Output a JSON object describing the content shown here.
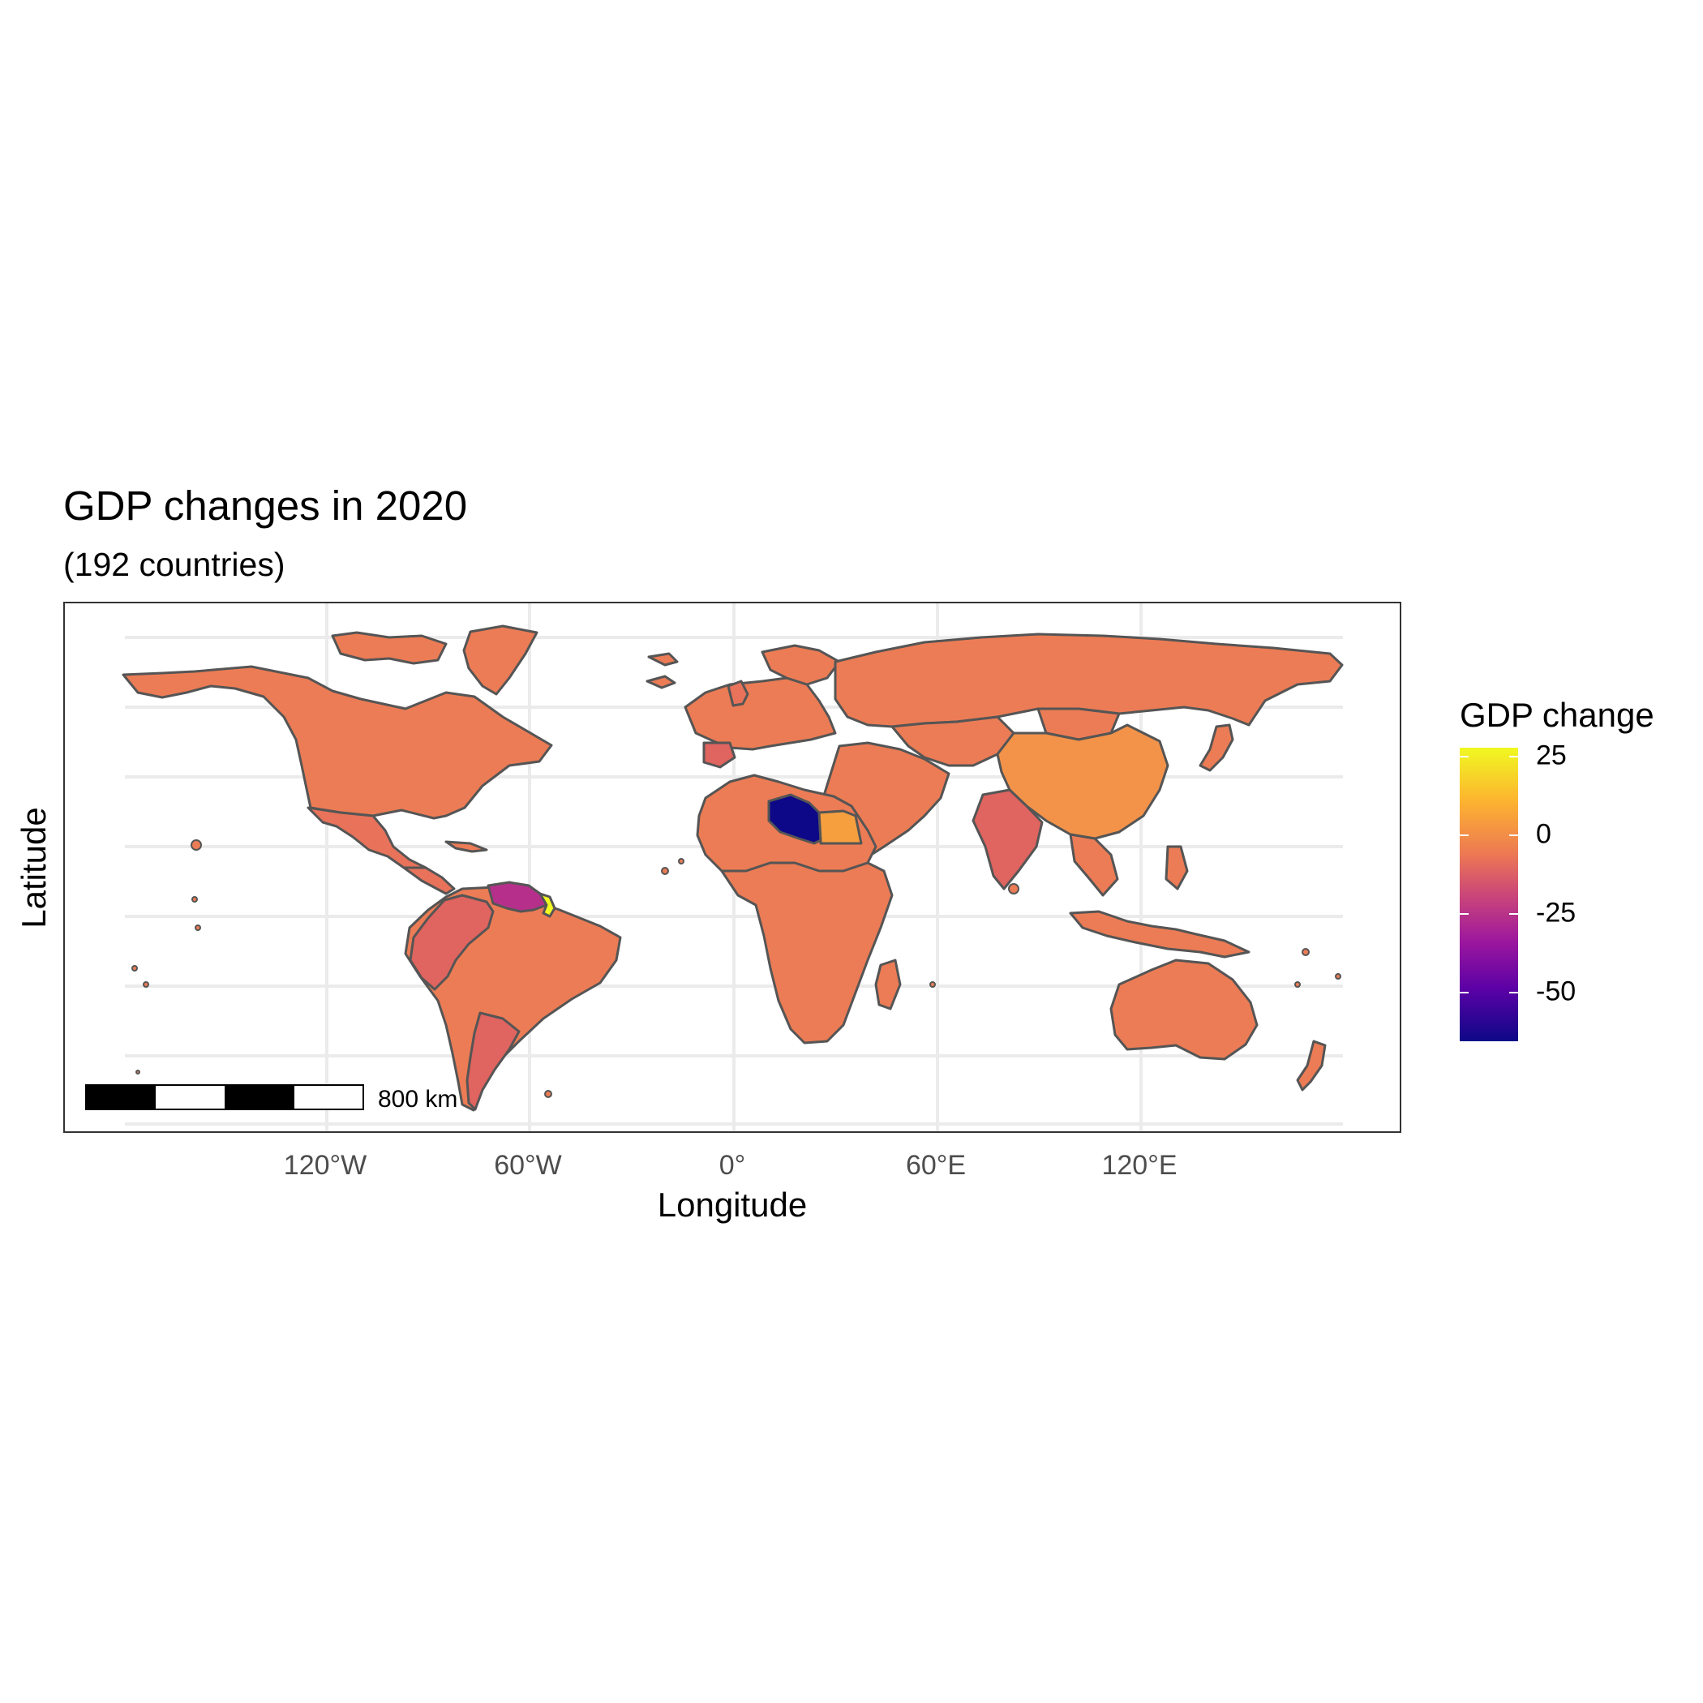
{
  "map": {
    "title": "GDP changes in 2020",
    "subtitle": "(192 countries)",
    "x_axis_label": "Longitude",
    "y_axis_label": "Latitude",
    "x_ticks": [
      "120°W",
      "60°W",
      "0°",
      "60°E",
      "120°E"
    ],
    "legend": {
      "title": "GDP change",
      "ticks": [
        "25",
        "0",
        "-25",
        "-50"
      ],
      "tick_values": [
        25,
        0,
        -25,
        -50
      ],
      "range": [
        -66,
        27
      ],
      "palette": "plasma"
    },
    "scale_bar": {
      "label": "800 km"
    },
    "colors": {
      "border": "#555555",
      "default_fill": "#ec7c55",
      "libya": "#0d0887",
      "venezuela": "#b6308b",
      "guyana": "#f0f921",
      "china": "#f3934a",
      "egypt": "#f59f3f",
      "india": "#e0645f",
      "peru_argentina": "#e0645f",
      "grid": "#ebebeb"
    }
  }
}
